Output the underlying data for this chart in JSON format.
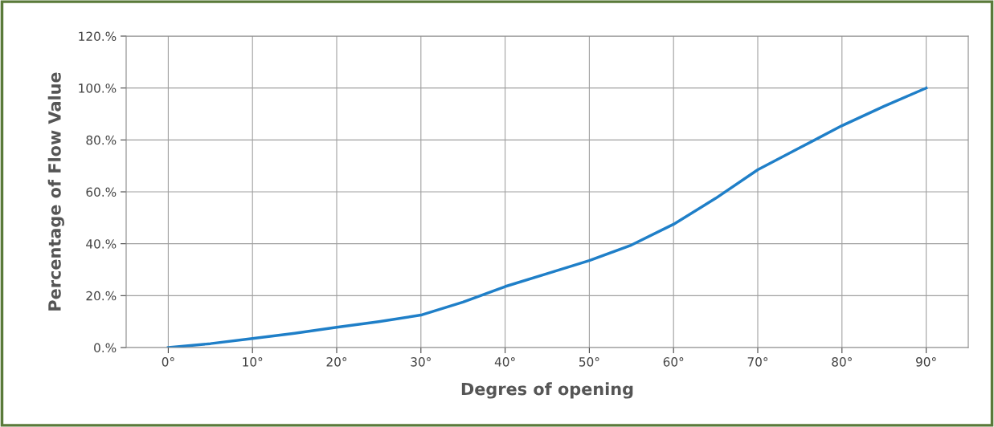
{
  "chart_data": {
    "type": "line",
    "xlabel": "Degres of opening",
    "ylabel": "Percentage of Flow Value",
    "x": [
      0,
      5,
      10,
      15,
      20,
      25,
      30,
      35,
      40,
      45,
      50,
      55,
      60,
      65,
      70,
      75,
      80,
      85,
      90
    ],
    "series": [
      {
        "color": "#1f7fc8",
        "values": [
          0,
          1.5,
          3.5,
          5.5,
          7.8,
          10,
          12.5,
          17.5,
          23.5,
          28.5,
          33.5,
          39.5,
          47.5,
          57.5,
          68.5,
          77,
          85.5,
          93,
          100
        ]
      }
    ],
    "xlim": [
      -5,
      95
    ],
    "xticks": [
      {
        "value": 0,
        "label": "0°"
      },
      {
        "value": 10,
        "label": "10°"
      },
      {
        "value": 20,
        "label": "20°"
      },
      {
        "value": 30,
        "label": "30°"
      },
      {
        "value": 40,
        "label": "40°"
      },
      {
        "value": 50,
        "label": "50°"
      },
      {
        "value": 60,
        "label": "60°"
      },
      {
        "value": 70,
        "label": "70°"
      },
      {
        "value": 80,
        "label": "80°"
      },
      {
        "value": 90,
        "label": "90°"
      }
    ],
    "ylim": [
      0,
      120
    ],
    "yticks": [
      {
        "value": 0,
        "label": "0.%"
      },
      {
        "value": 20,
        "label": "20.%"
      },
      {
        "value": 40,
        "label": "40.%"
      },
      {
        "value": 60,
        "label": "60.%"
      },
      {
        "value": 80,
        "label": "80.%"
      },
      {
        "value": 100,
        "label": "100.%"
      },
      {
        "value": 120,
        "label": "120.%"
      }
    ],
    "grid": true,
    "marker": "none",
    "line_style": "solid"
  }
}
